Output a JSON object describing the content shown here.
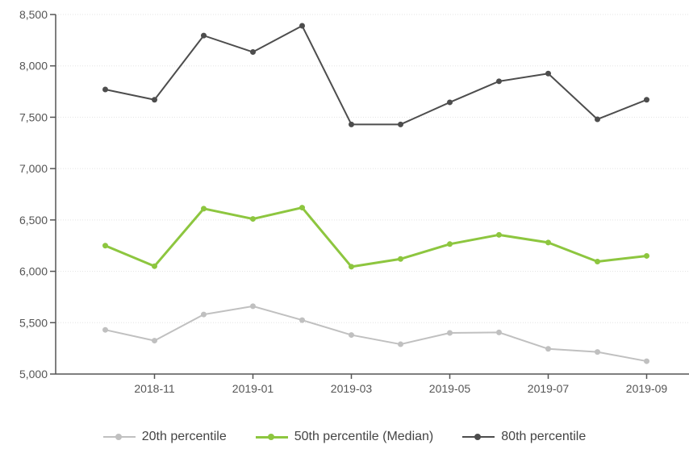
{
  "chart_data": {
    "type": "line",
    "title": "",
    "xlabel": "",
    "ylabel": "",
    "ylim": [
      5000,
      8500
    ],
    "yticks": [
      5000,
      5500,
      6000,
      6500,
      7000,
      7500,
      8000,
      8500
    ],
    "ytick_labels": [
      "5,000",
      "5,500",
      "6,000",
      "6,500",
      "7,000",
      "7,500",
      "8,000",
      "8,500"
    ],
    "x": [
      "2018-10",
      "2018-11",
      "2018-12",
      "2019-01",
      "2019-02",
      "2019-03",
      "2019-04",
      "2019-05",
      "2019-06",
      "2019-07",
      "2019-08",
      "2019-09"
    ],
    "xtick_labels": [
      "2018-11",
      "2019-01",
      "2019-03",
      "2019-05",
      "2019-07",
      "2019-09"
    ],
    "grid": true,
    "legend_position": "bottom-center",
    "series": [
      {
        "name": "20th percentile",
        "color": "#c0c0c0",
        "values": [
          5430,
          5325,
          5580,
          5660,
          5525,
          5380,
          5290,
          5400,
          5405,
          5245,
          5215,
          5125
        ]
      },
      {
        "name": "50th percentile (Median)",
        "color": "#8dc63f",
        "values": [
          6250,
          6050,
          6610,
          6510,
          6620,
          6045,
          6120,
          6265,
          6355,
          6280,
          6095,
          6150
        ]
      },
      {
        "name": "80th percentile",
        "color": "#4d4d4d",
        "values": [
          7770,
          7670,
          8295,
          8135,
          8390,
          7430,
          7430,
          7645,
          7850,
          7925,
          7480,
          7670
        ]
      }
    ]
  }
}
